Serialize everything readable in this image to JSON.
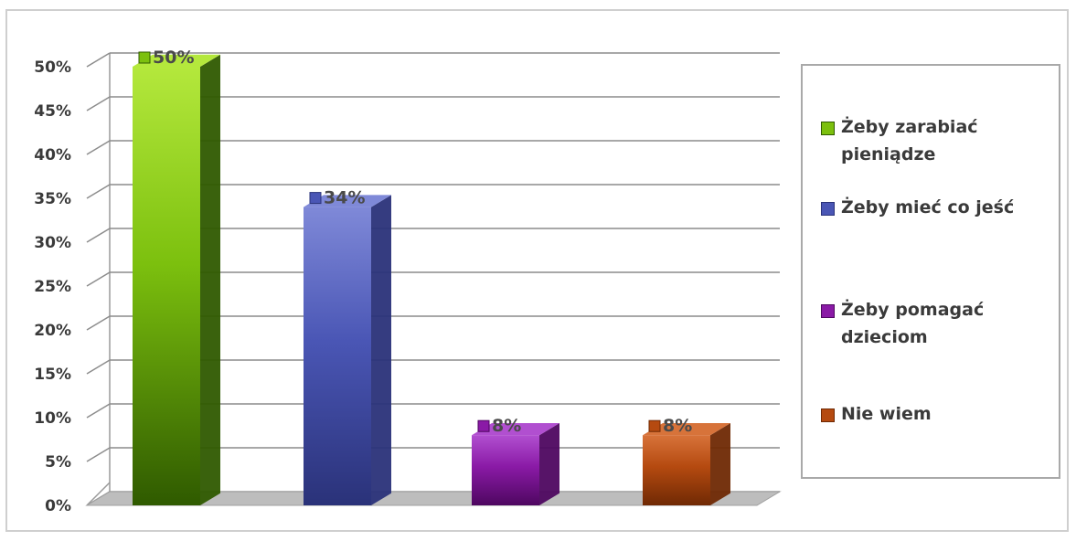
{
  "chart_data": {
    "type": "bar",
    "categories": [
      "Żeby zarabiać pieniądze",
      "Żeby mieć co jeść",
      "Żeby pomagać dzieciom",
      "Nie wiem"
    ],
    "values": [
      50,
      34,
      8,
      8
    ],
    "value_labels": [
      "50%",
      "34%",
      "8%",
      "8%"
    ],
    "y_ticks": [
      "0%",
      "5%",
      "10%",
      "15%",
      "20%",
      "25%",
      "30%",
      "35%",
      "40%",
      "45%",
      "50%"
    ],
    "ylim": [
      0,
      50
    ],
    "grid": true,
    "style": "3d",
    "legend": {
      "position": "right",
      "items": [
        "Żeby zarabiać pieniądze",
        "Żeby mieć co jeść",
        "Żeby pomagać dzieciom",
        "Nie wiem"
      ]
    },
    "colors": {
      "series": [
        "#7cc00e",
        "#4a56b5",
        "#8a1aa6",
        "#b54a10"
      ],
      "series_dark": [
        "#2f5a00",
        "#2a3279",
        "#4e0760",
        "#6f2904"
      ],
      "series_light": [
        "#b4e83c",
        "#7f89d8",
        "#b14fd0",
        "#d7733a"
      ]
    }
  }
}
